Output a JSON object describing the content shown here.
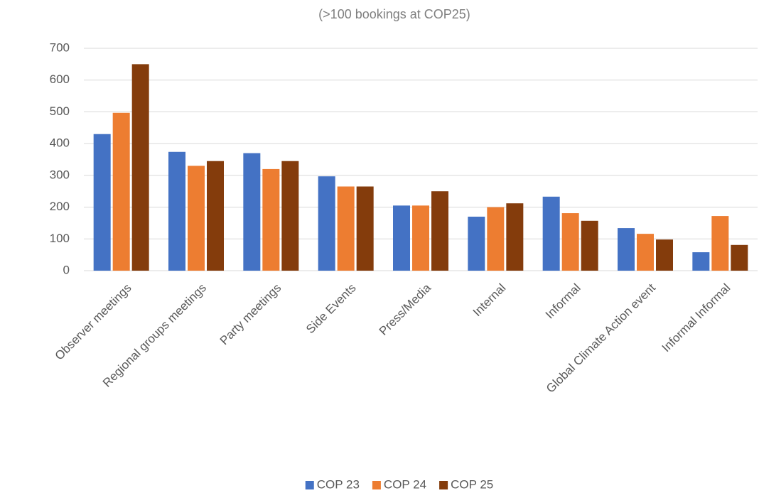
{
  "chart_data": {
    "type": "bar",
    "subtitle": "(>100 bookings at COP25)",
    "categories": [
      "Observer meetings",
      "Regional groups meetings",
      "Party meetings",
      "Side Events",
      "Press/Media",
      "Internal",
      "Informal",
      "Global Climate Action event",
      "Informal Informal"
    ],
    "series": [
      {
        "name": "COP 23",
        "color": "#4472c4",
        "values": [
          430,
          374,
          370,
          297,
          205,
          170,
          233,
          134,
          58
        ]
      },
      {
        "name": "COP 24",
        "color": "#ed7d31",
        "values": [
          497,
          330,
          320,
          265,
          205,
          200,
          181,
          116,
          172
        ]
      },
      {
        "name": "COP 25",
        "color": "#843c0c",
        "values": [
          650,
          345,
          345,
          265,
          250,
          212,
          157,
          98,
          81
        ]
      }
    ],
    "ylim": [
      0,
      700
    ],
    "yticks": [
      0,
      100,
      200,
      300,
      400,
      500,
      600,
      700
    ],
    "grid": true,
    "legend": "bottom"
  }
}
